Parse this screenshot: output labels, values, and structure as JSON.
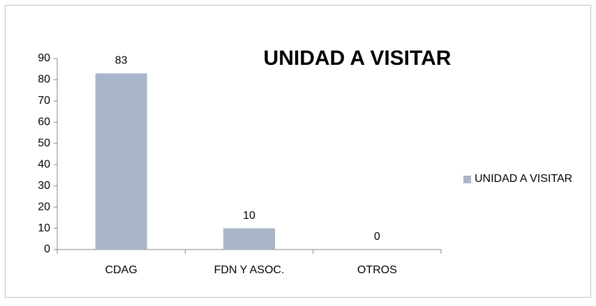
{
  "chart_data": {
    "type": "bar",
    "title": "UNIDAD A VISITAR",
    "categories": [
      "CDAG",
      "FDN Y ASOC.",
      "OTROS"
    ],
    "series": [
      {
        "name": "UNIDAD A VISITAR",
        "color": "#a8b4c9",
        "values": [
          83,
          10,
          0
        ]
      }
    ],
    "ylim": [
      0,
      90
    ],
    "yticks": [
      0,
      10,
      20,
      30,
      40,
      50,
      60,
      70,
      80,
      90
    ],
    "grid": false,
    "legend": "right",
    "data_labels": true
  }
}
